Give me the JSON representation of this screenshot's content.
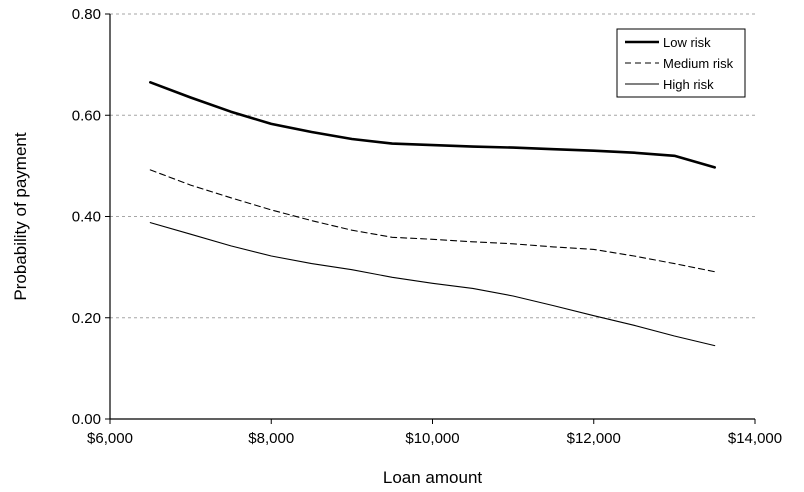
{
  "chart_data": {
    "type": "line",
    "title": "",
    "xlabel": "Loan amount",
    "ylabel": "Probability of payment",
    "xlim": [
      6000,
      14000
    ],
    "ylim": [
      0,
      0.8
    ],
    "x_ticks": [
      6000,
      8000,
      10000,
      12000,
      14000
    ],
    "x_tick_labels": [
      "$6,000",
      "$8,000",
      "$10,000",
      "$12,000",
      "$14,000"
    ],
    "y_ticks": [
      0,
      0.2,
      0.4,
      0.6,
      0.8
    ],
    "y_tick_labels": [
      "0.00",
      "0.20",
      "0.40",
      "0.60",
      "0.80"
    ],
    "grid": "horizontal dashed",
    "legend_position": "top-right",
    "x": [
      6500,
      7000,
      7500,
      8000,
      8500,
      9000,
      9500,
      10000,
      10500,
      11000,
      11500,
      12000,
      12500,
      13000,
      13500
    ],
    "series": [
      {
        "name": "Low risk",
        "style": "thick-solid",
        "color": "#000000",
        "values": [
          0.665,
          0.635,
          0.607,
          0.583,
          0.567,
          0.553,
          0.544,
          0.541,
          0.538,
          0.536,
          0.533,
          0.53,
          0.526,
          0.52,
          0.497
        ]
      },
      {
        "name": "Medium risk",
        "style": "dashed",
        "color": "#000000",
        "values": [
          0.492,
          0.462,
          0.437,
          0.413,
          0.392,
          0.373,
          0.359,
          0.355,
          0.35,
          0.346,
          0.34,
          0.335,
          0.322,
          0.307,
          0.291
        ]
      },
      {
        "name": "High risk",
        "style": "thin-solid",
        "color": "#000000",
        "values": [
          0.388,
          0.365,
          0.342,
          0.322,
          0.307,
          0.295,
          0.28,
          0.268,
          0.258,
          0.243,
          0.224,
          0.204,
          0.185,
          0.164,
          0.145
        ]
      }
    ]
  }
}
